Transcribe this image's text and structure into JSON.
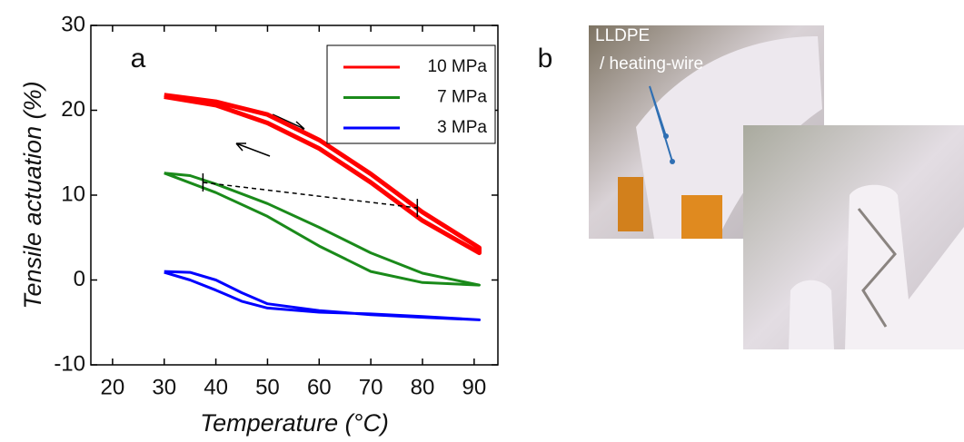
{
  "chart_data": {
    "type": "line",
    "panel_label": "a",
    "x_label": "Temperature (°C)",
    "y_label": "Tensile actuation (%)",
    "xlim": [
      15.8,
      94.6
    ],
    "xticks": [
      20,
      30,
      40,
      50,
      60,
      70,
      80,
      90
    ],
    "ylim": [
      -10,
      30
    ],
    "yticks": [
      -10,
      0,
      10,
      20,
      30
    ],
    "legend": "upper right",
    "series": [
      {
        "name": "10 MPa",
        "color": "#ff0000",
        "x": [
          30,
          40,
          50,
          60,
          70,
          80,
          91,
          91,
          80,
          70,
          60,
          50,
          40,
          30
        ],
        "values": [
          21.8,
          21,
          19.5,
          16.5,
          12.5,
          8,
          3.8,
          3.2,
          7,
          11.5,
          15.5,
          18.5,
          20.6,
          21.6
        ]
      },
      {
        "name": "7 MPa",
        "color": "#1a8a1a",
        "x": [
          30,
          35,
          40,
          50,
          60,
          70,
          80,
          91,
          91,
          80,
          70,
          60,
          50,
          40,
          30
        ],
        "values": [
          12.6,
          12.3,
          11.3,
          9,
          6.2,
          3.2,
          0.8,
          -0.6,
          -0.6,
          -0.3,
          1,
          4,
          7.5,
          10.3,
          12.6
        ]
      },
      {
        "name": "3 MPa",
        "color": "#0000ff",
        "x": [
          30,
          35,
          40,
          45,
          50,
          60,
          70,
          80,
          91,
          91,
          80,
          70,
          60,
          50,
          45,
          40,
          35,
          30
        ],
        "values": [
          1,
          0.9,
          0,
          -1.5,
          -2.8,
          -3.6,
          -4.1,
          -4.4,
          -4.7,
          -4.7,
          -4.3,
          -4,
          -3.8,
          -3.3,
          -2.5,
          -1.2,
          0,
          0.9
        ]
      }
    ],
    "guide_line": {
      "x": [
        37.5,
        79
      ],
      "values": [
        11.5,
        8.5
      ]
    }
  },
  "photo_panel": {
    "label": "b",
    "annotation": [
      "LLDPE",
      "/ heating-wire"
    ]
  }
}
